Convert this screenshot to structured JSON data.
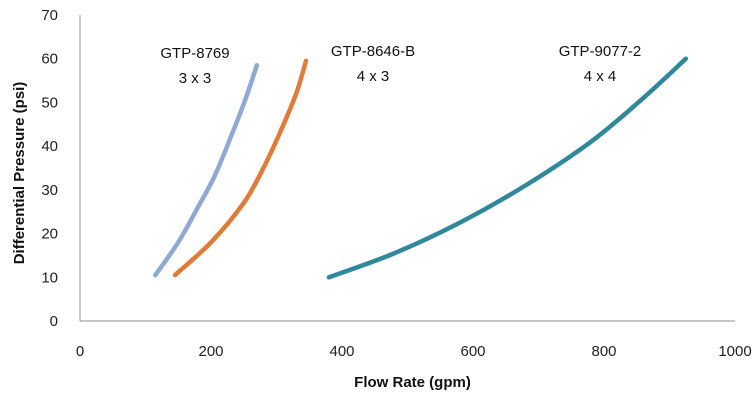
{
  "chart_data": {
    "type": "line",
    "xlabel": "Flow Rate (gpm)",
    "ylabel": "Differential Pressure (psi)",
    "xlim": [
      0,
      1000
    ],
    "ylim": [
      0,
      70
    ],
    "x_ticks": [
      0,
      200,
      400,
      600,
      800,
      1000
    ],
    "y_ticks": [
      0,
      10,
      20,
      30,
      40,
      50,
      60,
      70
    ],
    "grid": false,
    "legend": "none",
    "series": [
      {
        "name": "GTP-8769",
        "subtitle": "3 x 3",
        "color": "#8EA9D8",
        "x": [
          115,
          150,
          180,
          205,
          230,
          252,
          270
        ],
        "y": [
          10.5,
          18,
          26,
          33,
          42,
          50.5,
          58.5
        ]
      },
      {
        "name": "GTP-8646-B",
        "subtitle": "4 x 3",
        "color": "#E07B39",
        "x": [
          145,
          200,
          250,
          280,
          305,
          330,
          345
        ],
        "y": [
          10.5,
          18,
          27,
          35,
          43,
          52,
          59.5
        ]
      },
      {
        "name": "GTP-9077-2",
        "subtitle": "4 x 4",
        "color": "#31879C",
        "x": [
          380,
          480,
          580,
          680,
          780,
          860,
          925
        ],
        "y": [
          10,
          15.5,
          22.5,
          31,
          41,
          51,
          60
        ]
      }
    ]
  }
}
